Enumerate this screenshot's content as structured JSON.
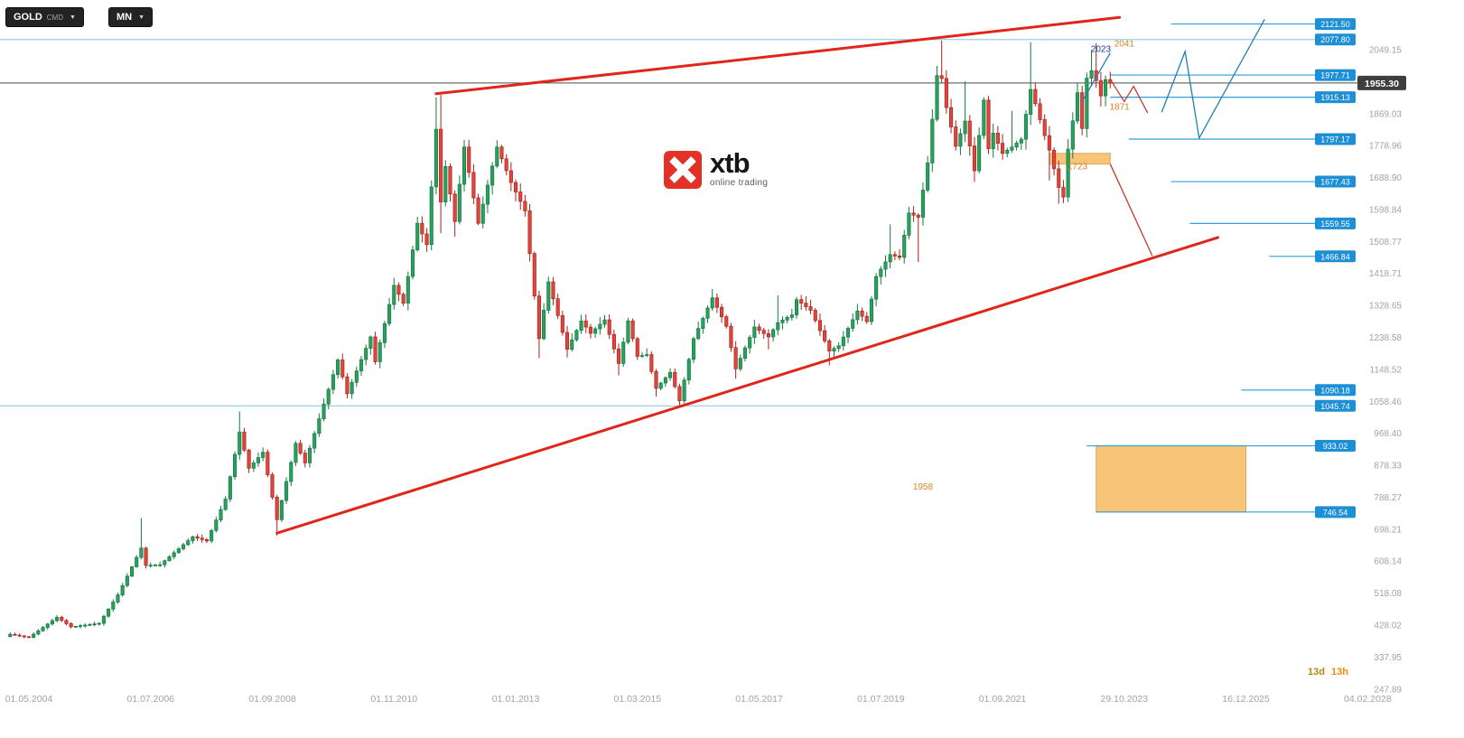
{
  "toolbar": {
    "symbol": "GOLD",
    "symbol_type": "CMD",
    "timeframe": "MN",
    "caret": "▼"
  },
  "logo": {
    "text": "xtb",
    "subtext": "online trading"
  },
  "countdown": {
    "days": "13d",
    "hours": "13h"
  },
  "colors": {
    "up_fill": "#2aa05f",
    "up_stroke": "#157a42",
    "down_fill": "#e0463d",
    "down_stroke": "#a8241c",
    "tag_blue": "#1d8fd6",
    "line_blue": "#2e9fd8",
    "line_blue_light": "#86c5e8",
    "trend_red": "#e0261b",
    "proj_blue": "#1f7fb5",
    "proj_red": "#c33a2e",
    "zone_fill": "#f8c478",
    "zone_stroke": "#d9a85e",
    "annotation_orange": "#e0821e",
    "annotation_blue": "#1c3fa0",
    "price_line": "#4a4a4a",
    "price_tag_bg": "#3e3e3e",
    "axis_text": "#a3a3a3"
  },
  "chart_data": {
    "type": "candlestick",
    "title": "GOLD CMD Monthly",
    "current_price": {
      "label": "1955.30",
      "price": 1955.3
    },
    "x_axis": [
      "01.05.2004",
      "01.07.2006",
      "01.09.2008",
      "01.11.2010",
      "01.01.2013",
      "01.03.2015",
      "01.05.2017",
      "01.07.2019",
      "01.09.2021",
      "29.10.2023",
      "16.12.2025",
      "04.02.2028"
    ],
    "y_axis": [
      "2049.15",
      "1869.03",
      "1778.96",
      "1688.90",
      "1598.84",
      "1508.77",
      "1418.71",
      "1328.65",
      "1238.58",
      "1148.52",
      "1058.46",
      "968.40",
      "878.33",
      "788.27",
      "698.21",
      "608.14",
      "518.08",
      "428.02",
      "337.95",
      "247.89"
    ],
    "anchor_format": [
      "month",
      "close",
      "high",
      "low"
    ],
    "candles": [
      [
        "2004-01",
        402
      ],
      [
        "2004-05",
        393
      ],
      [
        "2004-11",
        450
      ],
      [
        "2005-02",
        423
      ],
      [
        "2005-08",
        433
      ],
      [
        "2005-12",
        513
      ],
      [
        "2006-05",
        645,
        730
      ],
      [
        "2006-06",
        596
      ],
      [
        "2006-09",
        598
      ],
      [
        "2007-04",
        677
      ],
      [
        "2007-07",
        665
      ],
      [
        "2007-11",
        783
      ],
      [
        "2008-02",
        972,
        1030
      ],
      [
        "2008-04",
        870
      ],
      [
        "2008-07",
        915
      ],
      [
        "2008-10",
        725,
        null,
        680
      ],
      [
        "2009-02",
        940
      ],
      [
        "2009-04",
        885
      ],
      [
        "2009-11",
        1175
      ],
      [
        "2010-01",
        1080
      ],
      [
        "2010-06",
        1240
      ],
      [
        "2010-07",
        1170
      ],
      [
        "2010-11",
        1385
      ],
      [
        "2011-01",
        1335
      ],
      [
        "2011-04",
        1560
      ],
      [
        "2011-06",
        1500
      ],
      [
        "2011-08",
        1825,
        1915
      ],
      [
        "2011-09",
        1620,
        1922,
        1532
      ],
      [
        "2011-10",
        1720
      ],
      [
        "2011-12",
        1565,
        null,
        1522
      ],
      [
        "2012-02",
        1775
      ],
      [
        "2012-05",
        1560
      ],
      [
        "2012-09",
        1775
      ],
      [
        "2012-12",
        1675
      ],
      [
        "2013-03",
        1595
      ],
      [
        "2013-06",
        1235,
        null,
        1180
      ],
      [
        "2013-08",
        1395
      ],
      [
        "2013-12",
        1205,
        null,
        1182
      ],
      [
        "2014-03",
        1285
      ],
      [
        "2014-05",
        1250
      ],
      [
        "2014-08",
        1288
      ],
      [
        "2014-11",
        1165,
        null,
        1132
      ],
      [
        "2015-01",
        1285
      ],
      [
        "2015-03",
        1185
      ],
      [
        "2015-05",
        1190
      ],
      [
        "2015-07",
        1095,
        null,
        1072
      ],
      [
        "2015-10",
        1140
      ],
      [
        "2015-12",
        1060,
        null,
        1046
      ],
      [
        "2016-03",
        1235
      ],
      [
        "2016-07",
        1350,
        1375
      ],
      [
        "2016-10",
        1270
      ],
      [
        "2016-12",
        1150,
        null,
        1122
      ],
      [
        "2017-04",
        1268
      ],
      [
        "2017-07",
        1240,
        null,
        1205
      ],
      [
        "2017-09",
        1280,
        1357
      ],
      [
        "2017-12",
        1302
      ],
      [
        "2018-01",
        1345
      ],
      [
        "2018-04",
        1315
      ],
      [
        "2018-08",
        1200,
        null,
        1160
      ],
      [
        "2018-10",
        1215
      ],
      [
        "2019-02",
        1313
      ],
      [
        "2019-04",
        1283
      ],
      [
        "2019-06",
        1410
      ],
      [
        "2019-09",
        1472,
        1557
      ],
      [
        "2019-11",
        1464
      ],
      [
        "2020-01",
        1589
      ],
      [
        "2020-03",
        1577,
        null,
        1451
      ],
      [
        "2020-05",
        1730
      ],
      [
        "2020-07",
        1976
      ],
      [
        "2020-08",
        1968,
        2075
      ],
      [
        "2020-09",
        1886
      ],
      [
        "2020-11",
        1777,
        null,
        1765
      ],
      [
        "2021-01",
        1848,
        1960
      ],
      [
        "2021-03",
        1708,
        null,
        1677
      ],
      [
        "2021-05",
        1907
      ],
      [
        "2021-06",
        1770
      ],
      [
        "2021-07",
        1814
      ],
      [
        "2021-09",
        1757
      ],
      [
        "2021-11",
        1775,
        1877
      ],
      [
        "2022-01",
        1797
      ],
      [
        "2022-03",
        1937,
        2070
      ],
      [
        "2022-04",
        1897
      ],
      [
        "2022-06",
        1807
      ],
      [
        "2022-07",
        1766,
        null,
        1681
      ],
      [
        "2022-09",
        1661,
        null,
        1615
      ],
      [
        "2022-10",
        1634,
        null,
        1617
      ],
      [
        "2022-11",
        1769
      ],
      [
        "2023-01",
        1928
      ],
      [
        "2023-02",
        1827
      ],
      [
        "2023-03",
        1969
      ],
      [
        "2023-04",
        1990,
        2048
      ],
      [
        "2023-05",
        1962,
        2067
      ],
      [
        "2023-06",
        1919
      ],
      [
        "2023-07",
        1965
      ],
      [
        "2023-08",
        1955,
        1987,
        1940
      ]
    ],
    "levels": [
      {
        "label": "2121.50",
        "price": 2121.5,
        "from": "2024-09"
      },
      {
        "label": "2077.80",
        "price": 2077.8,
        "full": true
      },
      {
        "label": "1977.71",
        "price": 1977.71,
        "from": "2023-08"
      },
      {
        "label": "1915.13",
        "price": 1915.13,
        "from": "2023-08"
      },
      {
        "label": "1797.17",
        "price": 1797.17,
        "from": "2023-12"
      },
      {
        "label": "1677.43",
        "price": 1677.43,
        "from": "2024-09"
      },
      {
        "label": "1559.55",
        "price": 1559.55,
        "from": "2025-01"
      },
      {
        "label": "1466.84",
        "price": 1466.84,
        "from": "2026-06"
      },
      {
        "label": "1090.18",
        "price": 1090.18,
        "from": "2025-12"
      },
      {
        "label": "1045.74",
        "price": 1045.74,
        "full": true
      },
      {
        "label": "933.02",
        "price": 933.02,
        "from": "2023-03"
      },
      {
        "label": "746.54",
        "price": 746.54,
        "from": "2023-05"
      }
    ],
    "trendlines": [
      {
        "name": "upper-channel-line",
        "points": [
          [
            "2011-08",
            1925
          ],
          [
            "2023-10",
            2140
          ]
        ]
      },
      {
        "name": "lower-channel-line",
        "points": [
          [
            "2008-10",
            687
          ],
          [
            "2025-07",
            1520
          ]
        ]
      }
    ],
    "projections": [
      {
        "name": "rally-to-2041",
        "color": "blue",
        "points": [
          [
            "2023-02",
            1903
          ],
          [
            "2023-08",
            2040
          ]
        ]
      },
      {
        "name": "pullback-to-1871",
        "color": "red",
        "points": [
          [
            "2023-08",
            1966
          ],
          [
            "2023-11",
            1903
          ],
          [
            "2024-01",
            1946
          ],
          [
            "2024-04",
            1871
          ]
        ]
      },
      {
        "name": "advance-to-2121",
        "color": "blue",
        "points": [
          [
            "2024-07",
            1873
          ],
          [
            "2024-12",
            2044
          ],
          [
            "2025-03",
            1800
          ],
          [
            "2026-05",
            2135
          ]
        ]
      },
      {
        "name": "decline-to-1466",
        "color": "red",
        "points": [
          [
            "2023-08",
            1727
          ],
          [
            "2024-05",
            1468
          ]
        ]
      }
    ],
    "zones": [
      {
        "name": "resistance-zone-1723",
        "t1": "2022-07",
        "t2": "2023-08",
        "p1": 1757,
        "p2": 1727
      },
      {
        "name": "support-zone-746-933",
        "t1": "2023-05",
        "t2": "2026-01",
        "p1": 933.02,
        "p2": 746.54
      }
    ],
    "annotations": [
      {
        "text": "2023",
        "t": "2023-06",
        "p": 2043,
        "color": "blue"
      },
      {
        "text": "2041",
        "t": "2023-11",
        "p": 2058,
        "color": "orange"
      },
      {
        "text": "1871",
        "t": "2023-10",
        "p": 1880,
        "color": "orange"
      },
      {
        "text": "1723",
        "t": "2023-01",
        "p": 1712,
        "color": "orange"
      },
      {
        "text": "1958",
        "t": "2020-04",
        "p": 810,
        "color": "orange"
      }
    ]
  }
}
